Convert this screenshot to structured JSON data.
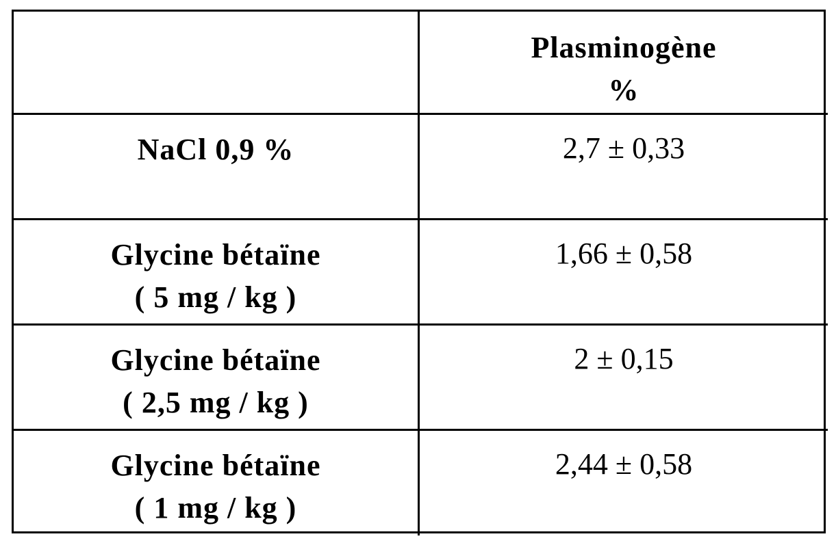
{
  "table": {
    "header": {
      "empty": "",
      "value_col": [
        "Plasminogène",
        "%"
      ]
    },
    "rows": [
      {
        "label": [
          "NaCl 0,9 %"
        ],
        "value": "2,7 ± 0,33"
      },
      {
        "label": [
          "Glycine bétaïne",
          "( 5 mg / kg )"
        ],
        "value": "1,66 ± 0,58"
      },
      {
        "label": [
          "Glycine bétaïne",
          "( 2,5 mg / kg )"
        ],
        "value": "2 ± 0,15"
      },
      {
        "label": [
          "Glycine bétaïne",
          "( 1 mg / kg )"
        ],
        "value": "2,44 ± 0,58"
      }
    ]
  }
}
